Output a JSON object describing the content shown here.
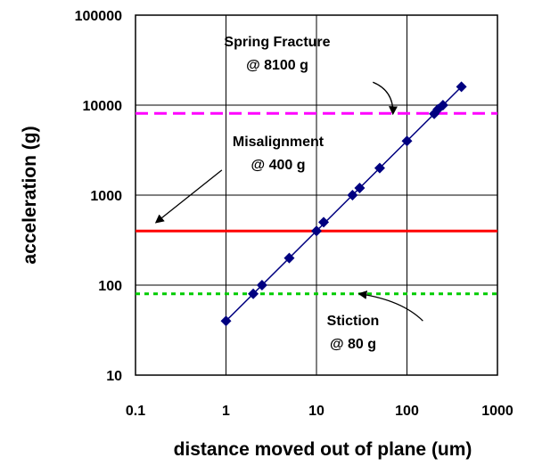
{
  "chart_data": {
    "type": "scatter",
    "title": "",
    "xlabel": "distance moved out of plane (um)",
    "ylabel": "acceleration (g)",
    "x_scale": "log",
    "y_scale": "log",
    "xlim": [
      0.1,
      1000
    ],
    "ylim": [
      10,
      100000
    ],
    "grid": true,
    "legend": "none",
    "x_ticks": [
      "0.1",
      "1",
      "10",
      "100",
      "1000"
    ],
    "y_ticks": [
      "10",
      "100",
      "1000",
      "10000",
      "100000"
    ],
    "series": [
      {
        "color": "#000080",
        "marker": "diamond",
        "points": [
          {
            "x": 1,
            "y": 40
          },
          {
            "x": 2,
            "y": 80
          },
          {
            "x": 2.5,
            "y": 100
          },
          {
            "x": 5,
            "y": 200
          },
          {
            "x": 10,
            "y": 400
          },
          {
            "x": 12,
            "y": 500
          },
          {
            "x": 25,
            "y": 1000
          },
          {
            "x": 30,
            "y": 1200
          },
          {
            "x": 50,
            "y": 2000
          },
          {
            "x": 100,
            "y": 4000
          },
          {
            "x": 200,
            "y": 8000
          },
          {
            "x": 220,
            "y": 9000
          },
          {
            "x": 250,
            "y": 10000
          },
          {
            "x": 400,
            "y": 16000
          }
        ],
        "trendline": {
          "from": {
            "x": 1,
            "y": 40
          },
          "to": {
            "x": 400,
            "y": 16000
          }
        }
      }
    ],
    "threshold_lines": [
      {
        "y": 8100,
        "color": "#ff00ff",
        "style": "dashed"
      },
      {
        "y": 400,
        "color": "#ff0000",
        "style": "solid"
      },
      {
        "y": 80,
        "color": "#00cc00",
        "style": "dotted"
      }
    ],
    "annotations": [
      {
        "line1": "Spring Fracture",
        "line2": "@ 8100 g",
        "arrow_from": {
          "x": 42,
          "y": 18000
        },
        "arrow_to": {
          "x": 70,
          "y": 8100
        }
      },
      {
        "line1": "Misalignment",
        "line2": "@ 400 g",
        "arrow_from": {
          "x": 0.9,
          "y": 1900
        },
        "arrow_to": {
          "x": 0.17,
          "y": 500
        }
      },
      {
        "line1": "Stiction",
        "line2": "@ 80 g",
        "arrow_from": {
          "x": 150,
          "y": 40
        },
        "arrow_to": {
          "x": 30,
          "y": 80
        }
      }
    ]
  }
}
